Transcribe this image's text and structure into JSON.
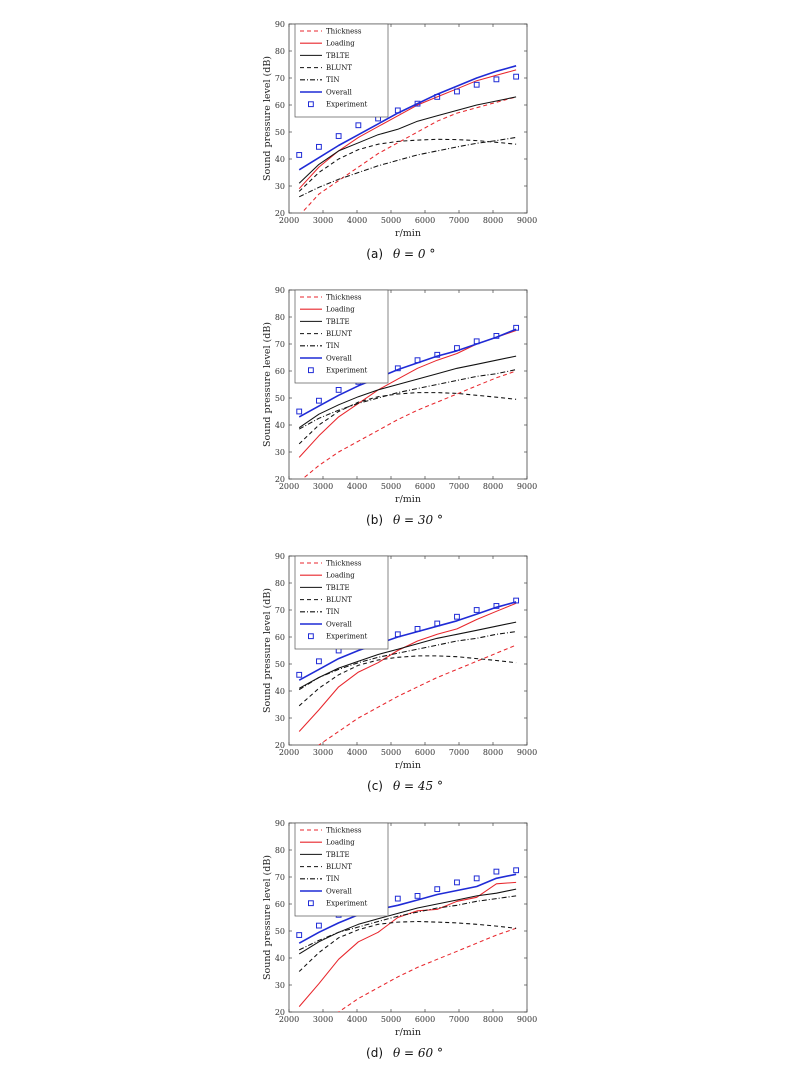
{
  "chart_data": [
    {
      "type": "line",
      "caption_label": "(a)",
      "caption_math": "θ = 0 °",
      "xlabel": "r/min",
      "ylabel": "Sound pressure level (dB)",
      "xlim": [
        2000,
        9000
      ],
      "ylim": [
        20,
        90
      ],
      "xticks": [
        2000,
        3000,
        4000,
        5000,
        6000,
        7000,
        8000,
        9000
      ],
      "yticks": [
        20,
        30,
        40,
        50,
        60,
        70,
        80,
        90
      ],
      "legend_position": "top-left",
      "grid": false,
      "x": [
        2300,
        2880,
        3460,
        4040,
        4620,
        5200,
        5780,
        6360,
        6940,
        7520,
        8100,
        8680
      ],
      "series": [
        {
          "name": "Thickness",
          "color": "#e8262c",
          "dash": "dashed",
          "values": [
            19,
            27,
            32,
            37,
            42,
            46,
            50,
            54,
            57,
            59,
            61,
            63
          ]
        },
        {
          "name": "Loading",
          "color": "#e8262c",
          "dash": "solid",
          "values": [
            29,
            37,
            43,
            48,
            52,
            56,
            60,
            63,
            66,
            69,
            71,
            73
          ]
        },
        {
          "name": "TBLTE",
          "color": "#111111",
          "dash": "solid",
          "values": [
            31,
            38,
            43,
            46,
            49,
            51,
            54,
            56,
            58,
            60,
            61.5,
            63
          ]
        },
        {
          "name": "BLUNT",
          "color": "#111111",
          "dash": "dashed",
          "values": [
            28,
            35,
            40,
            43.5,
            45.5,
            46.5,
            47,
            47.3,
            47.2,
            46.8,
            46.2,
            45.5
          ]
        },
        {
          "name": "TIN",
          "color": "#111111",
          "dash": "dashdot",
          "values": [
            26,
            29.5,
            32.5,
            35,
            37.5,
            39.5,
            41.5,
            43,
            44.5,
            45.8,
            46.8,
            48
          ]
        },
        {
          "name": "Overall",
          "color": "#1f2bd6",
          "dash": "solid",
          "values": [
            36,
            40.5,
            45,
            49,
            53,
            57,
            60.5,
            64,
            67,
            70,
            72.5,
            74.5
          ]
        },
        {
          "name": "Experiment",
          "color": "#1f2bd6",
          "marker": "square",
          "values": [
            41.5,
            44.5,
            48.5,
            52.5,
            55,
            58,
            60.5,
            63,
            65,
            67.5,
            69.5,
            70.5
          ]
        }
      ]
    },
    {
      "type": "line",
      "caption_label": "(b)",
      "caption_math": "θ = 30 °",
      "xlabel": "r/min",
      "ylabel": "Sound pressure level (dB)",
      "xlim": [
        2000,
        9000
      ],
      "ylim": [
        20,
        90
      ],
      "xticks": [
        2000,
        3000,
        4000,
        5000,
        6000,
        7000,
        8000,
        9000
      ],
      "yticks": [
        20,
        30,
        40,
        50,
        60,
        70,
        80,
        90
      ],
      "legend_position": "top-left",
      "grid": false,
      "x": [
        2300,
        2880,
        3460,
        4040,
        4620,
        5200,
        5780,
        6360,
        6940,
        7520,
        8100,
        8680
      ],
      "series": [
        {
          "name": "Thickness",
          "color": "#e8262c",
          "dash": "dashed",
          "values": [
            19,
            25,
            30,
            34,
            38,
            42,
            45.5,
            48.5,
            51.5,
            54.5,
            57.5,
            60
          ]
        },
        {
          "name": "Loading",
          "color": "#e8262c",
          "dash": "solid",
          "values": [
            28,
            36,
            43,
            48,
            53,
            57,
            61,
            64,
            66.5,
            70,
            72.5,
            75
          ]
        },
        {
          "name": "TBLTE",
          "color": "#111111",
          "dash": "solid",
          "values": [
            39,
            44,
            47.5,
            50.5,
            53,
            55,
            57,
            59,
            61,
            62.5,
            64,
            65.5
          ]
        },
        {
          "name": "BLUNT",
          "color": "#111111",
          "dash": "dashed",
          "values": [
            33,
            40,
            45,
            48.5,
            50.5,
            51.5,
            52,
            52,
            51.7,
            51,
            50.3,
            49.5
          ]
        },
        {
          "name": "TIN",
          "color": "#111111",
          "dash": "dashdot",
          "values": [
            38.5,
            42.5,
            45.5,
            48,
            50,
            52,
            53.5,
            55,
            56.5,
            58,
            59,
            60.5
          ]
        },
        {
          "name": "Overall",
          "color": "#1f2bd6",
          "dash": "solid",
          "values": [
            43,
            47,
            51,
            54.5,
            57.5,
            60.5,
            63,
            65.5,
            67.5,
            70,
            72.5,
            75.5
          ]
        },
        {
          "name": "Experiment",
          "color": "#1f2bd6",
          "marker": "square",
          "values": [
            45,
            49,
            53,
            56,
            59,
            61,
            64,
            66,
            68.5,
            71,
            73,
            76
          ]
        }
      ]
    },
    {
      "type": "line",
      "caption_label": "(c)",
      "caption_math": "θ = 45 °",
      "xlabel": "r/min",
      "ylabel": "Sound pressure level (dB)",
      "xlim": [
        2000,
        9000
      ],
      "ylim": [
        20,
        90
      ],
      "xticks": [
        2000,
        3000,
        4000,
        5000,
        6000,
        7000,
        8000,
        9000
      ],
      "yticks": [
        20,
        30,
        40,
        50,
        60,
        70,
        80,
        90
      ],
      "legend_position": "top-left",
      "grid": false,
      "x": [
        2300,
        2880,
        3460,
        4040,
        4620,
        5200,
        5780,
        6360,
        6940,
        7520,
        8100,
        8680
      ],
      "series": [
        {
          "name": "Thickness",
          "color": "#e8262c",
          "dash": "dashed",
          "values": [
            16,
            20,
            25,
            30,
            34,
            38,
            41.5,
            45,
            48,
            51,
            54,
            57
          ]
        },
        {
          "name": "Loading",
          "color": "#e8262c",
          "dash": "solid",
          "values": [
            25,
            33,
            41.5,
            47,
            50.5,
            55,
            58.5,
            61,
            63,
            66.5,
            69.5,
            72.5
          ]
        },
        {
          "name": "TBLTE",
          "color": "#111111",
          "dash": "solid",
          "values": [
            41,
            45,
            48.5,
            51,
            53.5,
            55.5,
            57.5,
            59.5,
            61,
            62.5,
            64,
            65.5
          ]
        },
        {
          "name": "BLUNT",
          "color": "#111111",
          "dash": "dashed",
          "values": [
            34.5,
            41,
            46,
            49.5,
            51.5,
            52.5,
            53,
            53,
            52.7,
            52,
            51.3,
            50.5
          ]
        },
        {
          "name": "TIN",
          "color": "#111111",
          "dash": "dashdot",
          "values": [
            40.5,
            45,
            48,
            50.5,
            52.5,
            54,
            55.5,
            57,
            58.5,
            59.5,
            61,
            62
          ]
        },
        {
          "name": "Overall",
          "color": "#1f2bd6",
          "dash": "solid",
          "values": [
            44,
            48,
            52,
            55,
            57.5,
            60,
            62,
            64,
            66,
            68.5,
            71,
            73
          ]
        },
        {
          "name": "Experiment",
          "color": "#1f2bd6",
          "marker": "square",
          "values": [
            46,
            51,
            55,
            58,
            60,
            61,
            63,
            65,
            67.5,
            70,
            71.5,
            73.5
          ]
        }
      ]
    },
    {
      "type": "line",
      "caption_label": "(d)",
      "caption_math": "θ = 60 °",
      "xlabel": "r/min",
      "ylabel": "Sound pressure level (dB)",
      "xlim": [
        2000,
        9000
      ],
      "ylim": [
        20,
        90
      ],
      "xticks": [
        2000,
        3000,
        4000,
        5000,
        6000,
        7000,
        8000,
        9000
      ],
      "yticks": [
        20,
        30,
        40,
        50,
        60,
        70,
        80,
        90
      ],
      "legend_position": "top-left",
      "grid": false,
      "x": [
        2300,
        2880,
        3460,
        4040,
        4620,
        5200,
        5780,
        6360,
        6940,
        7520,
        8100,
        8680
      ],
      "series": [
        {
          "name": "Thickness",
          "color": "#e8262c",
          "dash": "dashed",
          "values": [
            12,
            16,
            20,
            25,
            29,
            33,
            36.5,
            39.5,
            42.5,
            45.5,
            48.5,
            51
          ]
        },
        {
          "name": "Loading",
          "color": "#e8262c",
          "dash": "solid",
          "values": [
            22,
            30.5,
            39.5,
            46,
            49.5,
            55,
            57.5,
            58,
            61,
            62.5,
            67.5,
            68
          ]
        },
        {
          "name": "TBLTE",
          "color": "#111111",
          "dash": "solid",
          "values": [
            41.5,
            46,
            49.5,
            52.5,
            54.5,
            56.5,
            58.5,
            60,
            61.5,
            63,
            64,
            65.5
          ]
        },
        {
          "name": "BLUNT",
          "color": "#111111",
          "dash": "dashed",
          "values": [
            35,
            42,
            47.5,
            50.5,
            52.5,
            53.3,
            53.5,
            53.3,
            53,
            52.5,
            51.8,
            51
          ]
        },
        {
          "name": "TIN",
          "color": "#111111",
          "dash": "dashdot",
          "values": [
            43,
            46.5,
            49.5,
            51.5,
            53.5,
            55.5,
            57,
            58.5,
            59.5,
            61,
            62,
            63
          ]
        },
        {
          "name": "Overall",
          "color": "#1f2bd6",
          "dash": "solid",
          "values": [
            45.5,
            49.5,
            53,
            56,
            58,
            59.5,
            61.5,
            63.5,
            65,
            66.5,
            69.5,
            71
          ]
        },
        {
          "name": "Experiment",
          "color": "#1f2bd6",
          "marker": "square",
          "values": [
            48.5,
            52,
            56,
            58.5,
            60,
            62,
            63,
            65.5,
            68,
            69.5,
            72,
            72.5
          ]
        }
      ]
    }
  ]
}
